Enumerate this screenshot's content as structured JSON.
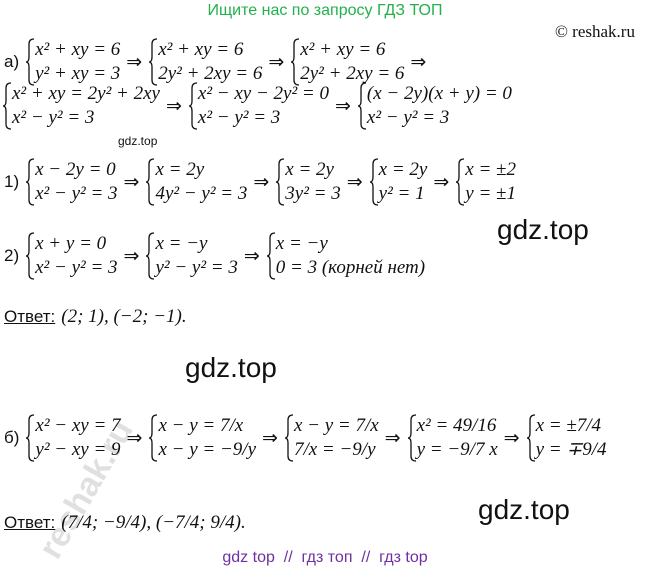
{
  "header": {
    "search_hint": "Ищите нас по запросу ГДЗ ТОП",
    "copyright": "© reshak.ru"
  },
  "lines": [
    {
      "pieces": [
        "а)",
        {
          "rows": [
            "x² + xy = 6",
            "y² + xy = 3"
          ]
        },
        "⇒",
        {
          "rows": [
            "x² + xy = 6",
            "2y² + 2xy = 6"
          ]
        },
        "⇒",
        {
          "rows": [
            "x² + xy = 6",
            "2y² + 2xy = 6"
          ]
        },
        "⇒"
      ]
    },
    {
      "pieces": [
        {
          "rows": [
            "x² + xy = 2y² + 2xy",
            "x² − y² = 3"
          ]
        },
        "⇒",
        {
          "rows": [
            "x² − xy − 2y² = 0",
            "x² − y² = 3"
          ]
        },
        "⇒",
        {
          "rows": [
            "(x − 2y)(x + y) = 0",
            "x² − y² = 3"
          ]
        }
      ]
    },
    {
      "pieces": [
        "1)",
        {
          "rows": [
            "x − 2y = 0",
            "x² − y² = 3"
          ]
        },
        "⇒",
        {
          "rows": [
            "x = 2y",
            "4y² − y² = 3"
          ]
        },
        "⇒",
        {
          "rows": [
            "x = 2y",
            "3y² = 3"
          ]
        },
        "⇒",
        {
          "rows": [
            "x = 2y",
            "y² = 1"
          ]
        },
        "⇒",
        {
          "rows": [
            "x = ±2",
            "y = ±1"
          ]
        }
      ]
    },
    {
      "pieces": [
        "2)",
        {
          "rows": [
            "x + y = 0",
            "x² − y² = 3"
          ]
        },
        "⇒",
        {
          "rows": [
            "x = −y",
            "y² − y² = 3"
          ]
        },
        "⇒",
        {
          "rows": [
            "x = −y",
            "0 = 3 (корней нет)"
          ]
        }
      ]
    },
    {
      "pieces": [
        "Ответ:",
        "(2; 1), (−2; −1)."
      ]
    },
    {
      "pieces": [
        "б)",
        {
          "rows": [
            "x² − xy = 7",
            "y² − xy = 9"
          ]
        },
        "⇒",
        {
          "rows": [
            "x − y = 7/x",
            "x − y = −9/y"
          ]
        },
        "⇒",
        {
          "rows": [
            "x − y = 7/x",
            "7/x = −9/y"
          ]
        },
        "⇒",
        {
          "rows": [
            "x² = 49/16",
            "y = −9/7 x"
          ]
        },
        "⇒",
        {
          "rows": [
            "x = ±7/4",
            "y = ∓9/4"
          ]
        }
      ]
    },
    {
      "pieces": [
        "Ответ:",
        "(7/4; −9/4), (−7/4; 9/4)."
      ]
    }
  ],
  "watermarks": [
    "gdz.top",
    "gdz.top",
    "gdz.top",
    "gdz.top",
    "reshak.ru"
  ],
  "footer": "gdz top  //  гдз топ  //  гдз top"
}
